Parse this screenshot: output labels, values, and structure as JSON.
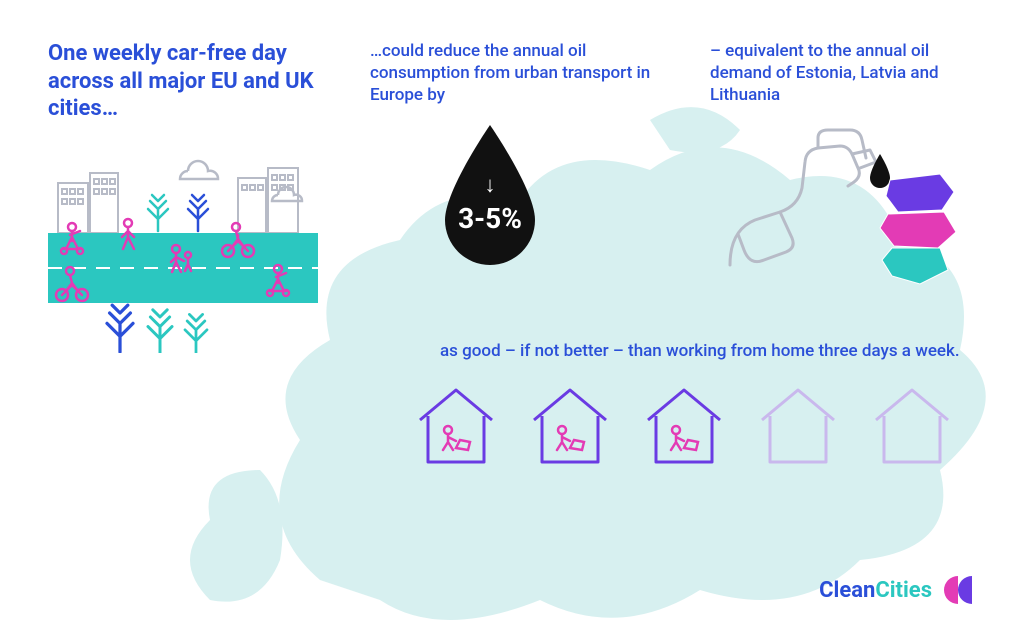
{
  "colors": {
    "blue": "#2a4fd8",
    "teal": "#2bc7c0",
    "pink": "#e33bb5",
    "purple": "#6a3be3",
    "lightpurple": "#c9b8ed",
    "mapfill": "#d7f0f0",
    "outline": "#b7bbc7",
    "black": "#111111",
    "white": "#ffffff"
  },
  "text": {
    "col1_headline": "One weekly car-free day across all major EU and UK cities…",
    "col2_body": "…could reduce the annual oil consumption from urban transport in Europe by",
    "col3_body": "– equivalent to the annual oil demand of Estonia, Latvia and Lithuania",
    "drop_value": "3-5%",
    "drop_arrow": "↓",
    "wfh_body": "as good – if not better – than working from home three days a week.",
    "logo_clean": "Clean",
    "logo_cities": "Cities"
  },
  "houses": {
    "count": 5,
    "filled": 3,
    "filled_stroke": "#6a3be3",
    "empty_stroke": "#c9b8ed",
    "person_color": "#e33bb5"
  },
  "baltic": {
    "estonia": "#6a3be3",
    "latvia": "#e33bb5",
    "lithuania": "#2bc7c0"
  }
}
